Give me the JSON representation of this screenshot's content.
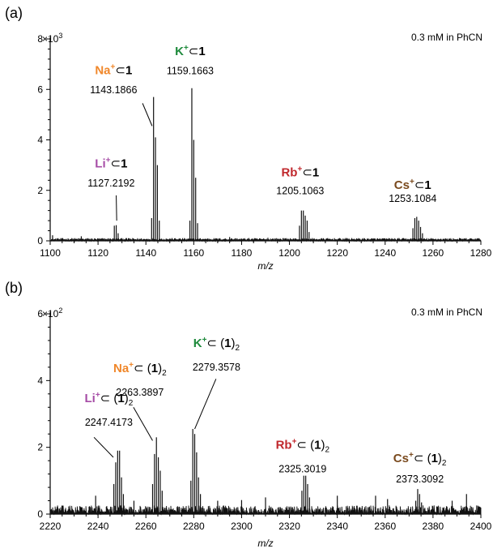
{
  "colors": {
    "Li": "#a64ca6",
    "Na": "#f0872a",
    "K": "#1e8a3c",
    "Rb": "#c0282d",
    "Cs": "#7a4a1e"
  },
  "chart_data": [
    {
      "type": "line",
      "panel": "(a)",
      "condition": "0.3 mM in PhCN",
      "xlabel": "m/z",
      "ylabel": "",
      "multiplier": "×10",
      "multiplier_exp": "3",
      "xlim": [
        1100,
        1280
      ],
      "ylim": [
        0,
        8
      ],
      "xticks": [
        1100,
        1120,
        1140,
        1160,
        1180,
        1200,
        1220,
        1240,
        1260,
        1280
      ],
      "yticks": [
        0,
        2,
        4,
        6,
        8
      ],
      "noise": 0.1,
      "peaks": [
        {
          "x": 1126.8,
          "y": 0.6
        },
        {
          "x": 1127.6,
          "y": 0.62
        },
        {
          "x": 1128.4,
          "y": 0.3
        },
        {
          "x": 1142.4,
          "y": 0.9
        },
        {
          "x": 1143.2,
          "y": 5.7
        },
        {
          "x": 1144.0,
          "y": 4.1
        },
        {
          "x": 1144.8,
          "y": 3.0
        },
        {
          "x": 1145.6,
          "y": 0.8
        },
        {
          "x": 1158.4,
          "y": 0.8
        },
        {
          "x": 1159.2,
          "y": 6.05
        },
        {
          "x": 1160.0,
          "y": 4.0
        },
        {
          "x": 1160.8,
          "y": 2.5
        },
        {
          "x": 1161.6,
          "y": 0.7
        },
        {
          "x": 1204.2,
          "y": 0.6
        },
        {
          "x": 1205.0,
          "y": 1.2
        },
        {
          "x": 1205.8,
          "y": 1.2
        },
        {
          "x": 1206.6,
          "y": 1.0
        },
        {
          "x": 1207.4,
          "y": 0.8
        },
        {
          "x": 1208.2,
          "y": 0.35
        },
        {
          "x": 1251.6,
          "y": 0.5
        },
        {
          "x": 1252.4,
          "y": 0.9
        },
        {
          "x": 1253.2,
          "y": 0.95
        },
        {
          "x": 1254.0,
          "y": 0.8
        },
        {
          "x": 1254.8,
          "y": 0.55
        },
        {
          "x": 1255.6,
          "y": 0.3
        },
        {
          "x": 1101.0,
          "y": 0.22
        },
        {
          "x": 1113.0,
          "y": 0.18
        },
        {
          "x": 1175.0,
          "y": 0.15
        },
        {
          "x": 1191.0,
          "y": 0.12
        }
      ],
      "annotations": [
        {
          "ion": "Li",
          "charge": "+",
          "sym": "⊂",
          "ligand": "1",
          "sub": "",
          "mass": "1127.2192",
          "cx": 1125.5,
          "ty": 2.9,
          "my": 2.15,
          "lx1": 1127.6,
          "ly1": 1.8,
          "lx2": 1127.8,
          "ly2": 0.8
        },
        {
          "ion": "Na",
          "charge": "+",
          "sym": "⊂",
          "ligand": "1",
          "sub": "",
          "mass": "1143.1866",
          "cx": 1126.5,
          "ty": 6.6,
          "my": 5.85,
          "lx1": 1138.6,
          "ly1": 5.45,
          "lx2": 1142.6,
          "ly2": 4.55
        },
        {
          "ion": "K",
          "charge": "+",
          "sym": "⊂",
          "ligand": "1",
          "sub": "",
          "mass": "1159.1663",
          "cx": 1158.5,
          "ty": 7.35,
          "my": 6.6,
          "lx1": 0,
          "ly1": 0,
          "lx2": 0,
          "ly2": 0
        },
        {
          "ion": "Rb",
          "charge": "+",
          "sym": "⊂",
          "ligand": "1",
          "sub": "",
          "mass": "1205.1063",
          "cx": 1204.5,
          "ty": 2.55,
          "my": 1.85,
          "lx1": 0,
          "ly1": 0,
          "lx2": 0,
          "ly2": 0
        },
        {
          "ion": "Cs",
          "charge": "+",
          "sym": "⊂",
          "ligand": "1",
          "sub": "",
          "mass": "1253.1084",
          "cx": 1251.5,
          "ty": 2.05,
          "my": 1.55,
          "lx1": 0,
          "ly1": 0,
          "lx2": 0,
          "ly2": 0
        }
      ]
    },
    {
      "type": "line",
      "panel": "(b)",
      "condition": "0.3 mM in PhCN",
      "xlabel": "m/z",
      "ylabel": "",
      "multiplier": "×10",
      "multiplier_exp": "2",
      "xlim": [
        2220,
        2400
      ],
      "ylim": [
        0,
        6
      ],
      "xticks": [
        2220,
        2240,
        2260,
        2280,
        2300,
        2320,
        2340,
        2360,
        2380,
        2400
      ],
      "yticks": [
        0,
        2,
        4,
        6
      ],
      "noise": 0.25,
      "peaks": [
        {
          "x": 2246.6,
          "y": 0.9
        },
        {
          "x": 2247.4,
          "y": 1.55
        },
        {
          "x": 2248.2,
          "y": 1.9
        },
        {
          "x": 2249.0,
          "y": 1.9
        },
        {
          "x": 2249.8,
          "y": 1.1
        },
        {
          "x": 2250.6,
          "y": 0.6
        },
        {
          "x": 2262.8,
          "y": 0.9
        },
        {
          "x": 2263.6,
          "y": 1.8
        },
        {
          "x": 2264.4,
          "y": 2.3
        },
        {
          "x": 2265.2,
          "y": 1.7
        },
        {
          "x": 2266.0,
          "y": 1.3
        },
        {
          "x": 2266.8,
          "y": 0.7
        },
        {
          "x": 2278.8,
          "y": 1.0
        },
        {
          "x": 2279.6,
          "y": 2.55
        },
        {
          "x": 2280.4,
          "y": 2.4
        },
        {
          "x": 2281.2,
          "y": 1.85
        },
        {
          "x": 2282.0,
          "y": 1.1
        },
        {
          "x": 2282.8,
          "y": 0.6
        },
        {
          "x": 2325.2,
          "y": 0.7
        },
        {
          "x": 2326.0,
          "y": 1.15
        },
        {
          "x": 2326.8,
          "y": 1.15
        },
        {
          "x": 2327.6,
          "y": 0.9
        },
        {
          "x": 2328.4,
          "y": 0.5
        },
        {
          "x": 2372.8,
          "y": 0.4
        },
        {
          "x": 2373.6,
          "y": 0.75
        },
        {
          "x": 2374.4,
          "y": 0.6
        },
        {
          "x": 2375.2,
          "y": 0.35
        },
        {
          "x": 2239.0,
          "y": 0.55
        },
        {
          "x": 2255.0,
          "y": 0.4
        },
        {
          "x": 2290.0,
          "y": 0.4
        },
        {
          "x": 2300.0,
          "y": 0.42
        },
        {
          "x": 2310.0,
          "y": 0.5
        },
        {
          "x": 2340.0,
          "y": 0.55
        },
        {
          "x": 2356.0,
          "y": 0.55
        },
        {
          "x": 2361.0,
          "y": 0.45
        },
        {
          "x": 2388.0,
          "y": 0.4
        },
        {
          "x": 2394.0,
          "y": 0.6
        }
      ],
      "annotations": [
        {
          "ion": "Li",
          "charge": "+",
          "sym": "⊂ (",
          "ligand": "1",
          "sub": "2",
          "mass": "2247.4173",
          "cx": 2244.5,
          "ty": 3.35,
          "my": 2.65,
          "lx1": 2238.3,
          "ly1": 2.3,
          "lx2": 2246.4,
          "ly2": 1.7
        },
        {
          "ion": "Na",
          "charge": "+",
          "sym": "⊂ (",
          "ligand": "1",
          "sub": "2",
          "mass": "2263.3897",
          "cx": 2257.5,
          "ty": 4.25,
          "my": 3.55,
          "lx1": 2254.8,
          "ly1": 3.2,
          "lx2": 2262.8,
          "ly2": 2.2
        },
        {
          "ion": "K",
          "charge": "+",
          "sym": "⊂ (",
          "ligand": "1",
          "sub": "2",
          "mass": "2279.3578",
          "cx": 2289.5,
          "ty": 5.0,
          "my": 4.3,
          "lx1": 2289.3,
          "ly1": 4.05,
          "lx2": 2280.4,
          "ly2": 2.55
        },
        {
          "ion": "Rb",
          "charge": "+",
          "sym": "⊂ (",
          "ligand": "1",
          "sub": "2",
          "mass": "2325.3019",
          "cx": 2325.5,
          "ty": 1.95,
          "my": 1.25,
          "lx1": 0,
          "ly1": 0,
          "lx2": 0,
          "ly2": 0
        },
        {
          "ion": "Cs",
          "charge": "+",
          "sym": "⊂ (",
          "ligand": "1",
          "sub": "2",
          "mass": "2373.3092",
          "cx": 2374.5,
          "ty": 1.55,
          "my": 0.95,
          "lx1": 0,
          "ly1": 0,
          "lx2": 0,
          "ly2": 0
        }
      ]
    }
  ]
}
